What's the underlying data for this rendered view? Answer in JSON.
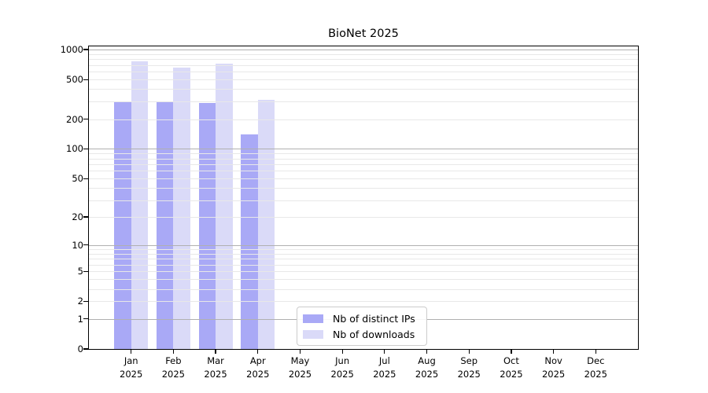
{
  "chart_data": {
    "type": "bar",
    "title": "BioNet 2025",
    "categories": [
      "Jan",
      "Feb",
      "Mar",
      "Apr",
      "May",
      "Jun",
      "Jul",
      "Aug",
      "Sep",
      "Oct",
      "Nov",
      "Dec"
    ],
    "category_year": "2025",
    "series": [
      {
        "name": "Nb of distinct IPs",
        "color": "#a9a9f6",
        "values": [
          300,
          300,
          290,
          140,
          0,
          0,
          0,
          0,
          0,
          0,
          0,
          0
        ]
      },
      {
        "name": "Nb of downloads",
        "color": "#dadaf8",
        "values": [
          760,
          655,
          725,
          315,
          0,
          0,
          0,
          0,
          0,
          0,
          0,
          0
        ]
      }
    ],
    "y_axis": {
      "scale": "log10(1+v)",
      "ticks": [
        0,
        1,
        2,
        5,
        10,
        20,
        50,
        100,
        200,
        500,
        1000
      ],
      "major_gridlines": [
        1,
        10,
        100,
        1000
      ],
      "minor_gridline_decades": [
        1,
        10,
        100
      ],
      "ylim_top_effective": 1075
    },
    "x_axis": {
      "months_shown": 12
    },
    "legend": {
      "position": "lower-center-inside",
      "items": [
        "Nb of distinct IPs",
        "Nb of downloads"
      ]
    },
    "grid": "horizontal major and minor, drawn over bars"
  },
  "colors": {
    "background": "#ffffff",
    "bar_distinct_ips": "#a9a9f6",
    "bar_downloads": "#dadaf8",
    "grid_major": "#b0b0b0",
    "grid_minor": "#e8e8e8",
    "axis_spine": "#000000",
    "legend_border": "#cccccc"
  }
}
